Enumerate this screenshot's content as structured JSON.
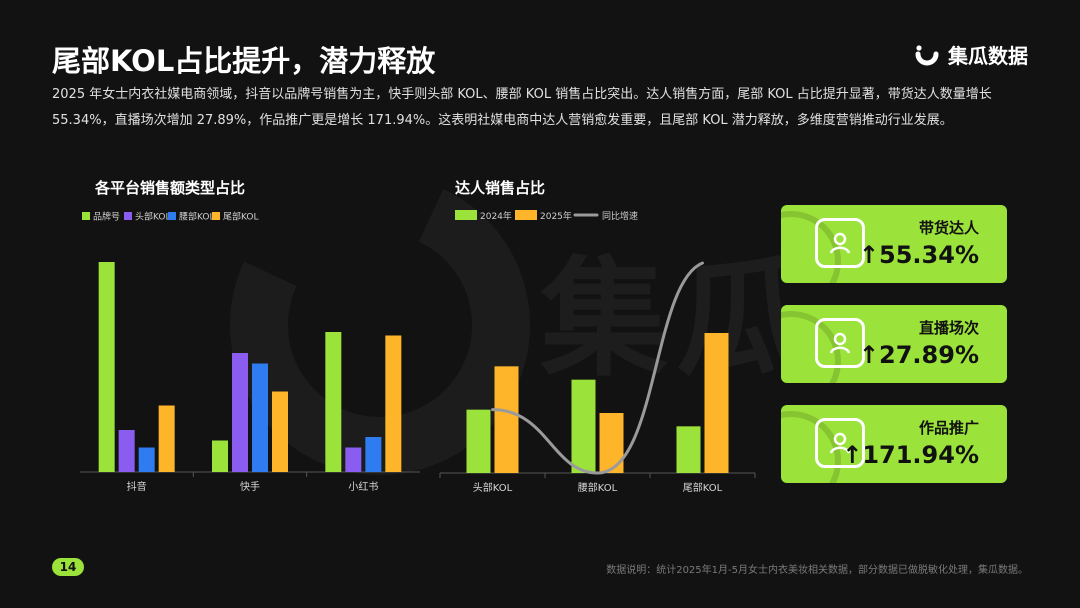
{
  "header": {
    "title": "尾部KOL占比提升，潜力释放",
    "brand_name": "集瓜数据",
    "watermark": "集瓜"
  },
  "intro": "2025 年女士内衣社媒电商领域，抖音以品牌号销售为主，快手则头部 KOL、腰部 KOL 销售占比突出。达人销售方面，尾部 KOL 占比提升显著，带货达人数量增长 55.34%，直播场次增加 27.89%，作品推广更是增长 171.94%。这表明社媒电商中达人营销愈发重要，且尾部 KOL 潜力释放，多维度营销推动行业发展。",
  "colors": {
    "green": "#9be23a",
    "purple": "#8a5cf0",
    "blue": "#2f7bf0",
    "orange": "#ffb52a",
    "line_gray": "#9a9a9a"
  },
  "chart_data": [
    {
      "type": "bar",
      "title": "各平台销售额类型占比",
      "categories": [
        "抖音",
        "快手",
        "小红书"
      ],
      "series": [
        {
          "name": "品牌号",
          "color": "#9be23a",
          "values": [
            0.6,
            0.09,
            0.4
          ]
        },
        {
          "name": "头部KOL",
          "color": "#8a5cf0",
          "values": [
            0.12,
            0.34,
            0.07
          ]
        },
        {
          "name": "腰部KOL",
          "color": "#2f7bf0",
          "values": [
            0.07,
            0.31,
            0.1
          ]
        },
        {
          "name": "尾部KOL",
          "color": "#ffb52a",
          "values": [
            0.19,
            0.23,
            0.39
          ]
        }
      ],
      "ylim": [
        0,
        0.6
      ],
      "legend": "top-left",
      "grid": false
    },
    {
      "type": "bar",
      "title": "达人销售占比",
      "categories": [
        "头部KOL",
        "腰部KOL",
        "尾部KOL"
      ],
      "series": [
        {
          "name": "2024年",
          "color": "#9be23a",
          "values": [
            0.19,
            0.28,
            0.14
          ]
        },
        {
          "name": "2025年",
          "color": "#ffb52a",
          "values": [
            0.32,
            0.18,
            0.42
          ]
        },
        {
          "name": "同比增速",
          "color": "#9a9a9a",
          "kind": "line",
          "values": [
            0.19,
            0.0,
            0.63
          ]
        }
      ],
      "ylim": [
        0,
        0.63
      ],
      "legend": "top-left",
      "grid": false
    }
  ],
  "cards": [
    {
      "label": "带货达人",
      "value": "55.34%",
      "icon": "person-frame-icon"
    },
    {
      "label": "直播场次",
      "value": "27.89%",
      "icon": "person-frame-icon"
    },
    {
      "label": "作品推广",
      "value": "171.94%",
      "icon": "person-frame-icon"
    }
  ],
  "card_arrow": "↑",
  "footer": {
    "page": "14",
    "note": "数据说明：统计2025年1月-5月女士内衣美妆相关数据，部分数据已做脱敏化处理，集瓜数据。"
  }
}
